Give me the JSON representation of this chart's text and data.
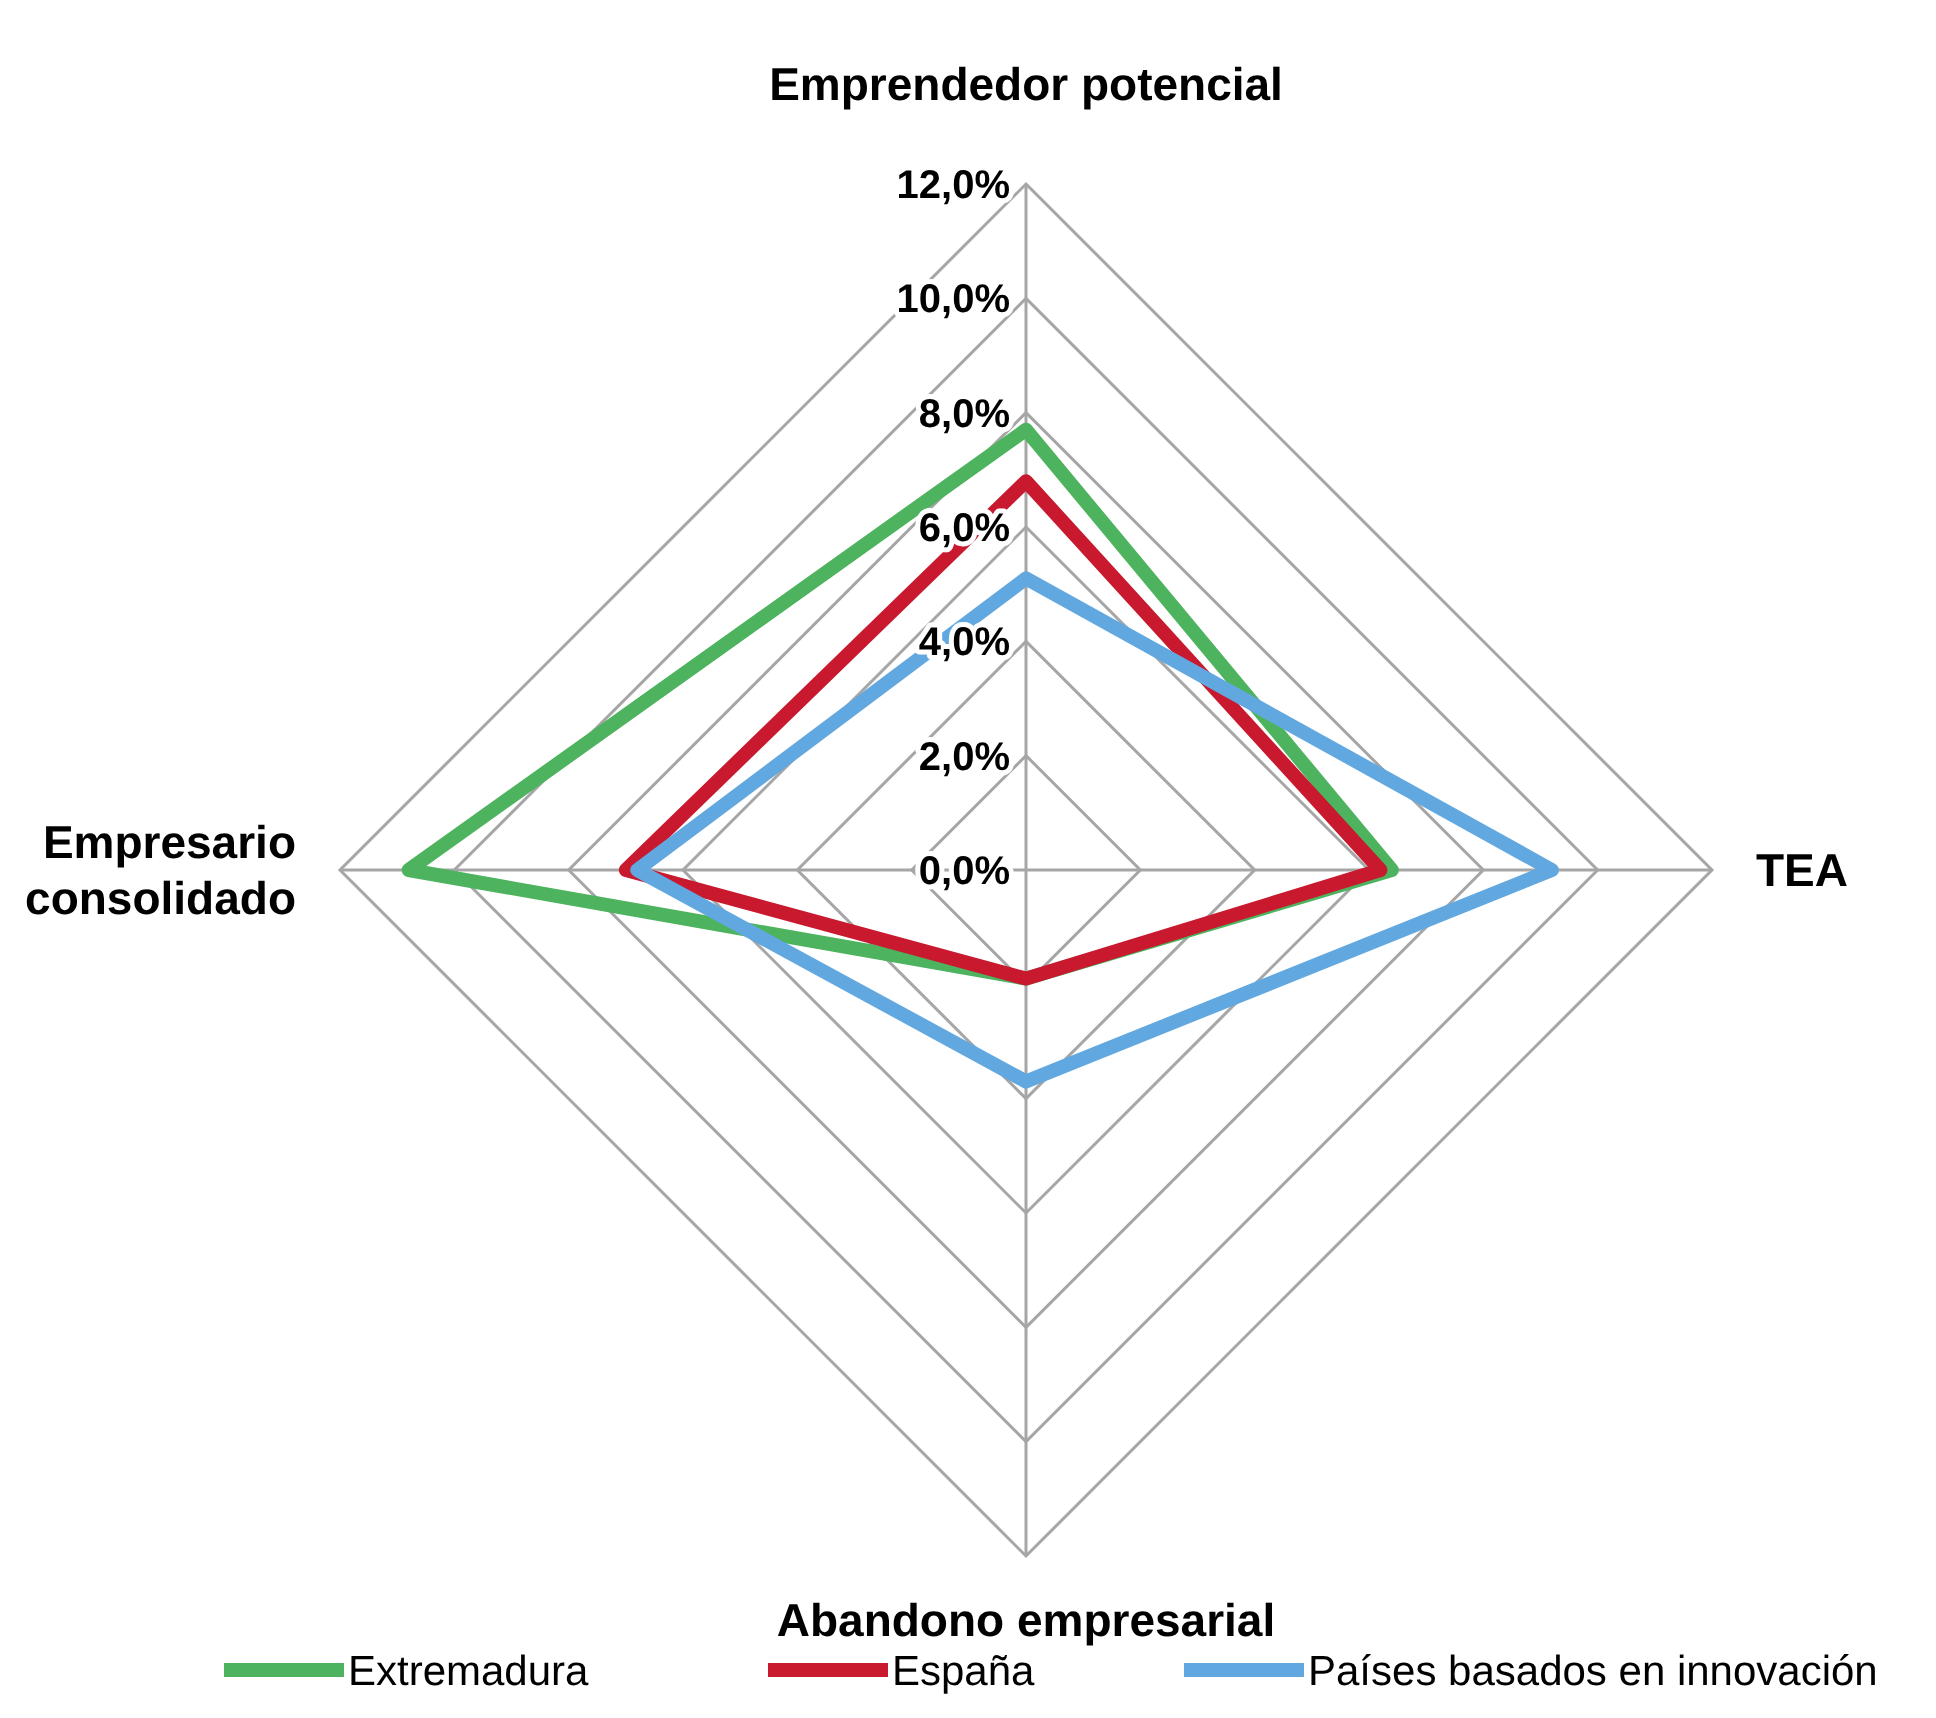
{
  "chart_data": {
    "type": "radar",
    "categories": [
      "Emprendedor potencial",
      "TEA",
      "Abandono empresarial",
      "Empresario consolidado"
    ],
    "series": [
      {
        "name": "Extremadura",
        "color": "#4db35e",
        "values": [
          7.7,
          6.4,
          1.9,
          10.8
        ]
      },
      {
        "name": "España",
        "color": "#c8192e",
        "values": [
          6.8,
          6.2,
          1.9,
          7.0
        ]
      },
      {
        "name": "Países basados en innovación",
        "color": "#62a8e0",
        "values": [
          5.1,
          9.2,
          3.7,
          6.8
        ]
      }
    ],
    "ylim": [
      0,
      12
    ],
    "yticks": [
      {
        "value": 0,
        "label": "0,0%"
      },
      {
        "value": 2,
        "label": "2,0%"
      },
      {
        "value": 4,
        "label": "4,0%"
      },
      {
        "value": 6,
        "label": "6,0%"
      },
      {
        "value": 8,
        "label": "8,0%"
      },
      {
        "value": 10,
        "label": "10,0%"
      },
      {
        "value": 12,
        "label": "12,0%"
      }
    ],
    "grid": true,
    "legend": "bottom",
    "line_style": "solid",
    "marker": "none"
  }
}
